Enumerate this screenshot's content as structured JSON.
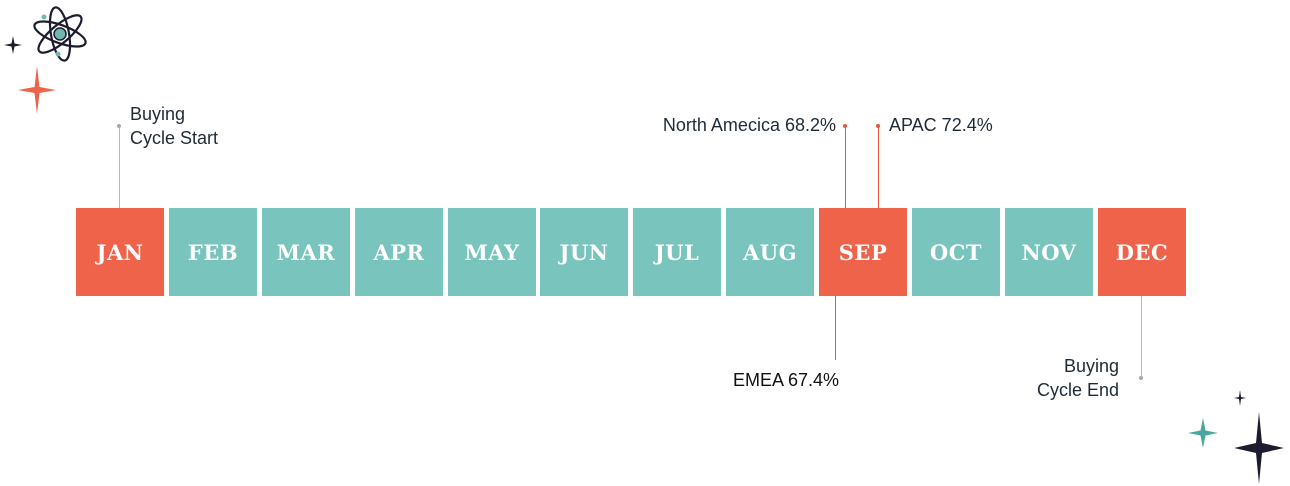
{
  "months": [
    "JAN",
    "FEB",
    "MAR",
    "APR",
    "MAY",
    "JUN",
    "JUL",
    "AUG",
    "SEP",
    "OCT",
    "NOV",
    "DEC"
  ],
  "highlighted_months": [
    "JAN",
    "SEP",
    "DEC"
  ],
  "colors": {
    "teal": "#7ac4be",
    "coral": "#ef634b",
    "navy": "#1c1c2e"
  },
  "annotations": {
    "cycle_start": {
      "line1": "Buying",
      "line2": "Cycle Start"
    },
    "north_america": "North Amecica 68.2%",
    "apac": "APAC 72.4%",
    "emea": "EMEA 67.4%",
    "cycle_end": {
      "line1": "Buying",
      "line2": "Cycle End"
    }
  },
  "icons": [
    "atom-icon",
    "sparkle-icon"
  ]
}
